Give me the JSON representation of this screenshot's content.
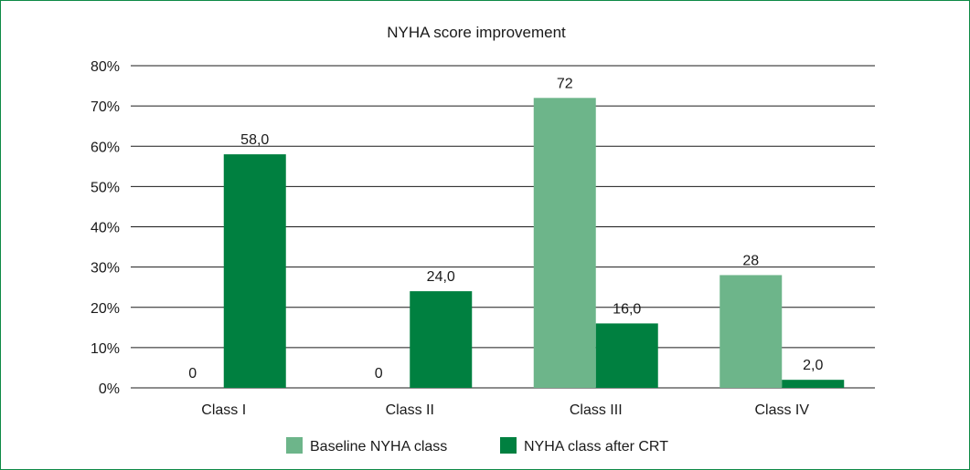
{
  "chart_data": {
    "type": "bar",
    "title": "NYHA score improvement",
    "xlabel": "",
    "ylabel": "",
    "categories": [
      "Class I",
      "Class II",
      "Class III",
      "Class IV"
    ],
    "series": [
      {
        "name": "Baseline NYHA class",
        "color": "#6db58a",
        "values": [
          0,
          0,
          72,
          28
        ],
        "labels": [
          "0",
          "0",
          "72",
          "28"
        ]
      },
      {
        "name": "NYHA class after CRT",
        "color": "#008040",
        "values": [
          58,
          24,
          16,
          2
        ],
        "labels": [
          "58,0",
          "24,0",
          "16,0",
          "2,0"
        ]
      }
    ],
    "ylim": [
      0,
      80
    ],
    "yticks": [
      0,
      10,
      20,
      30,
      40,
      50,
      60,
      70,
      80
    ],
    "ytick_labels": [
      "0%",
      "10%",
      "20%",
      "30%",
      "40%",
      "50%",
      "60%",
      "70%",
      "80%"
    ],
    "grid": true,
    "legend_position": "bottom-center"
  },
  "frame_color": "#0e8a45"
}
